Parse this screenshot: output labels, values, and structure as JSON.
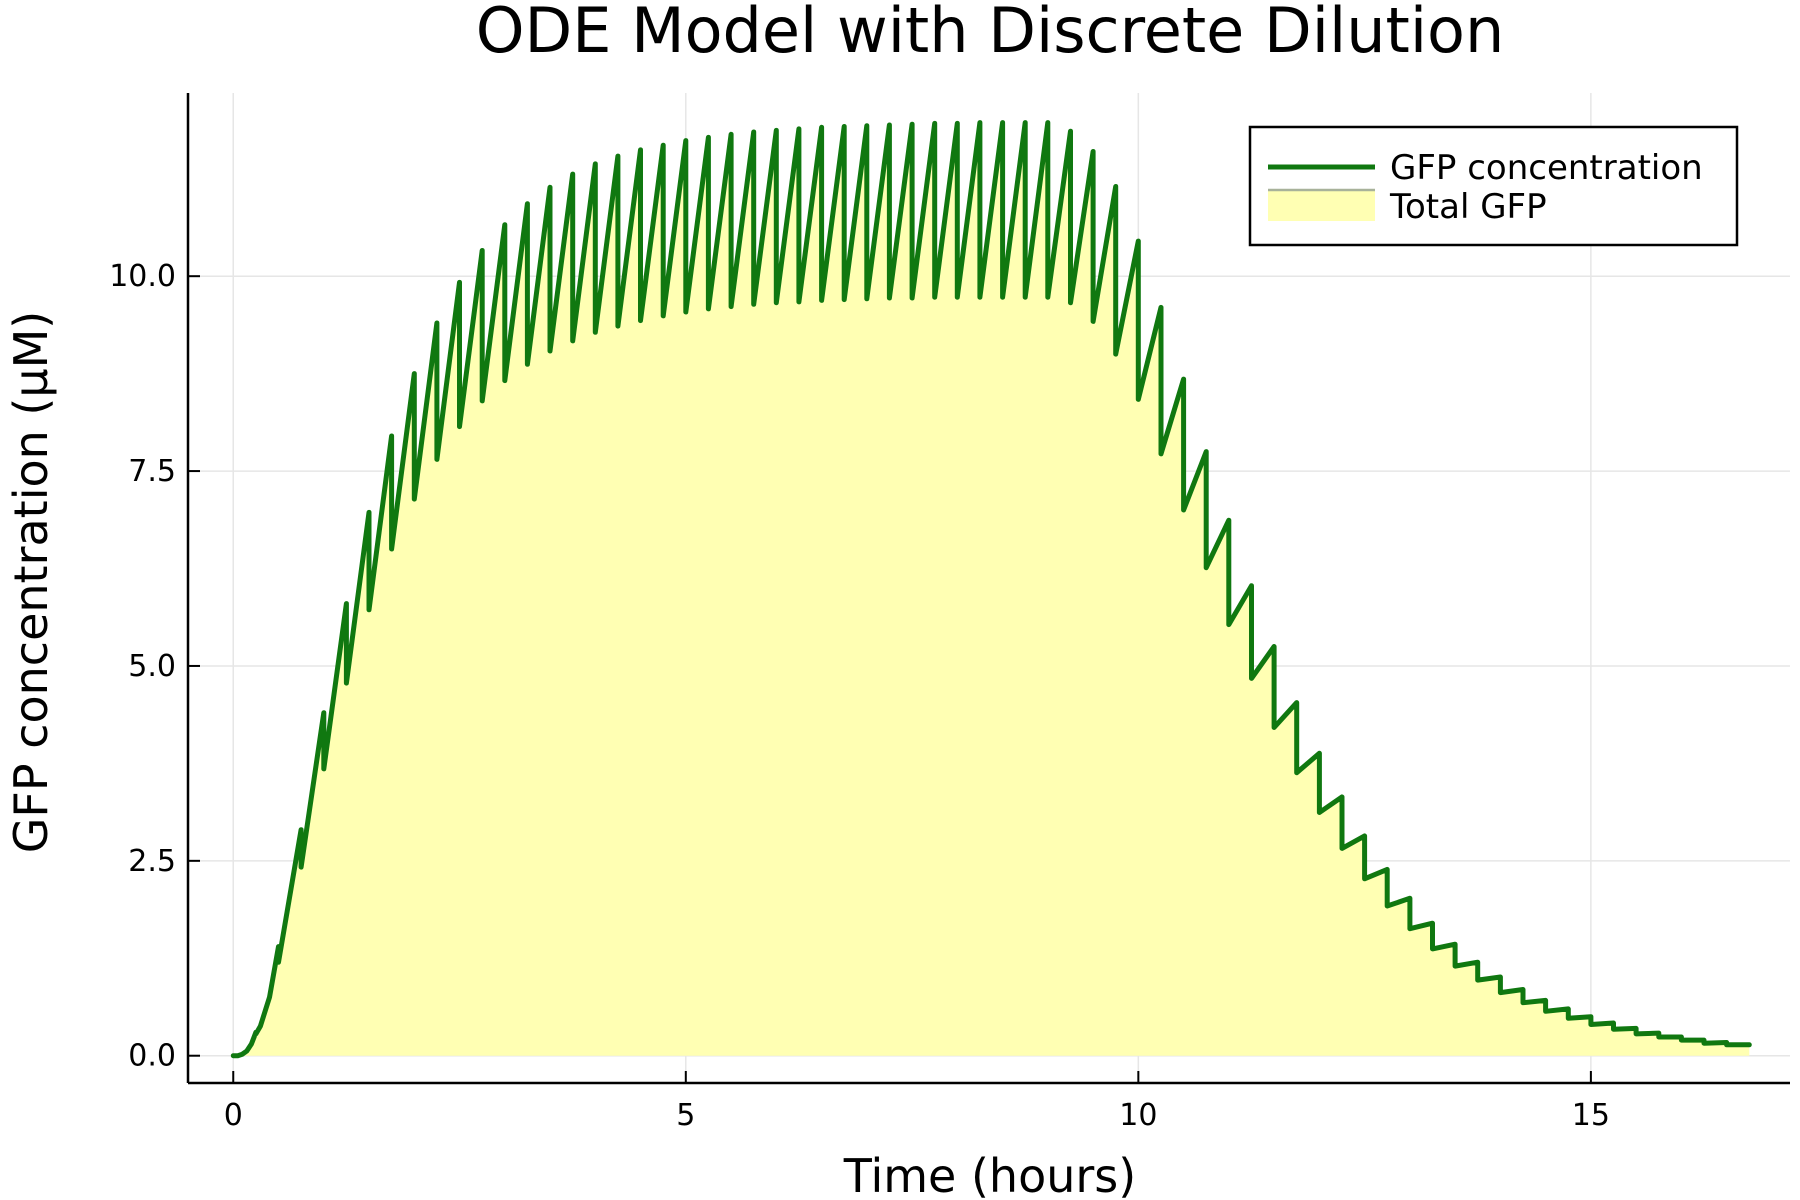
{
  "chart_data": {
    "type": "line",
    "title": "ODE Model with Discrete Dilution",
    "xlabel": "Time (hours)",
    "ylabel": "GFP concentration (μM)",
    "xlim": [
      -0.5,
      17.2
    ],
    "ylim": [
      -0.35,
      12.35
    ],
    "xticks": [
      0,
      5,
      10,
      15
    ],
    "xtick_labels": [
      "0",
      "5",
      "10",
      "15"
    ],
    "yticks": [
      0,
      2.5,
      5,
      7.5,
      10
    ],
    "ytick_labels": [
      "0.0",
      "2.5",
      "5.0",
      "7.5",
      "10.0"
    ],
    "grid": true,
    "legend_position": "top-right",
    "colors": {
      "line": "#107810",
      "fill": "#ffffb3",
      "legend_fill_line": "#a8b29a"
    },
    "series": [
      {
        "name": "GFP concentration",
        "style": "line",
        "dilution_period_hours": 0.25,
        "x": [
          0,
          0.05,
          0.1,
          0.15,
          0.2,
          0.25,
          0.3,
          0.4,
          0.5,
          0.75,
          1.0,
          1.25,
          1.5,
          1.75,
          2.0,
          2.25,
          2.5,
          2.75,
          3.0,
          3.25,
          3.5,
          3.75,
          4.0,
          4.25,
          4.5,
          4.75,
          5.0,
          5.25,
          5.5,
          5.75,
          6.0,
          6.25,
          6.5,
          6.75,
          7.0,
          7.25,
          7.5,
          7.75,
          8.0,
          8.25,
          8.5,
          8.75,
          9.0,
          9.25,
          9.5,
          9.75,
          10.0,
          10.25,
          10.5,
          10.75,
          11.0,
          11.25,
          11.5,
          11.75,
          12.0,
          12.25,
          12.5,
          12.75,
          13.0,
          13.25,
          13.5,
          13.75,
          14.0,
          14.25,
          14.5,
          14.75,
          15.0,
          15.25,
          15.5,
          15.75,
          16.0,
          16.25,
          16.5,
          16.75
        ],
        "y_before_dilution": [
          0.0,
          0.0,
          0.02,
          0.06,
          0.15,
          0.3,
          0.38,
          0.75,
          1.4,
          2.9,
          4.4,
          5.8,
          6.97,
          7.95,
          8.75,
          9.4,
          9.92,
          10.33,
          10.66,
          10.93,
          11.14,
          11.31,
          11.44,
          11.54,
          11.62,
          11.68,
          11.74,
          11.78,
          11.82,
          11.85,
          11.87,
          11.89,
          11.91,
          11.92,
          11.93,
          11.94,
          11.95,
          11.96,
          11.96,
          11.97,
          11.97,
          11.97,
          11.97,
          11.86,
          11.6,
          11.15,
          10.45,
          9.6,
          8.68,
          7.75,
          6.87,
          6.03,
          5.25,
          4.53,
          3.88,
          3.32,
          2.82,
          2.39,
          2.02,
          1.7,
          1.43,
          1.2,
          1.01,
          0.85,
          0.71,
          0.6,
          0.5,
          0.42,
          0.35,
          0.29,
          0.24,
          0.2,
          0.17,
          0.14
        ],
        "y_after_dilution": [
          0.0,
          0.0,
          0.02,
          0.06,
          0.15,
          0.28,
          0.38,
          0.75,
          1.2,
          2.42,
          3.68,
          4.78,
          5.72,
          6.5,
          7.14,
          7.65,
          8.07,
          8.4,
          8.66,
          8.87,
          9.04,
          9.17,
          9.28,
          9.36,
          9.43,
          9.49,
          9.54,
          9.58,
          9.61,
          9.64,
          9.66,
          9.67,
          9.69,
          9.7,
          9.71,
          9.72,
          9.72,
          9.73,
          9.73,
          9.73,
          9.73,
          9.73,
          9.73,
          9.66,
          9.42,
          9.0,
          8.42,
          7.72,
          7.0,
          6.26,
          5.53,
          4.84,
          4.21,
          3.63,
          3.12,
          2.66,
          2.27,
          1.92,
          1.63,
          1.37,
          1.15,
          0.97,
          0.81,
          0.68,
          0.57,
          0.48,
          0.4,
          0.34,
          0.28,
          0.24,
          0.2,
          0.16,
          0.14,
          0.14
        ]
      },
      {
        "name": "Total GFP",
        "style": "filled-area",
        "note_fill_follows": "GFP concentration"
      }
    ]
  }
}
